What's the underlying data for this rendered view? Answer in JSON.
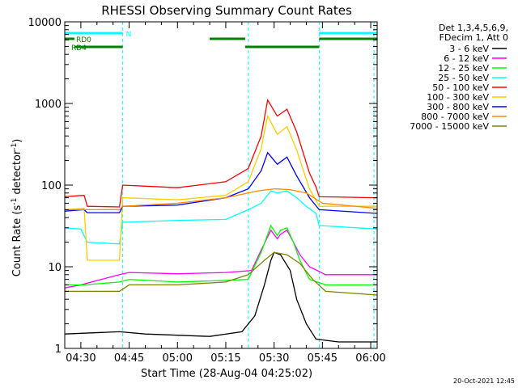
{
  "chart_data": {
    "type": "line",
    "title": "RHESSI Observing Summary Count Rates",
    "xlabel": "Start Time (28-Aug-04 04:25:02)",
    "ylabel_parts": [
      "Count Rate (s",
      "-1",
      " detector",
      "-1",
      ")"
    ],
    "yscale": "log",
    "ylim": [
      1,
      10000
    ],
    "xlim": [
      "04:25",
      "06:02"
    ],
    "x_ticks": [
      {
        "t": "04:30",
        "label": "04:30"
      },
      {
        "t": "04:45",
        "label": "04:45"
      },
      {
        "t": "05:00",
        "label": "05:00"
      },
      {
        "t": "05:15",
        "label": "05:15"
      },
      {
        "t": "05:30",
        "label": "05:30"
      },
      {
        "t": "05:45",
        "label": "05:45"
      },
      {
        "t": "06:00",
        "label": "06:00"
      }
    ],
    "y_ticks": [
      {
        "v": 1,
        "label": "1"
      },
      {
        "v": 10,
        "label": "10"
      },
      {
        "v": 100,
        "label": "100"
      },
      {
        "v": 1000,
        "label": "1000"
      },
      {
        "v": 10000,
        "label": "10000"
      }
    ],
    "legend_header": [
      "Det 1,3,4,5,6,9,",
      "FDecim 1, Att 0"
    ],
    "legend_placement": "right",
    "series": [
      {
        "name": "3 - 6 keV",
        "color": "#000000",
        "points": [
          [
            "04:25",
            1.5
          ],
          [
            "04:42",
            1.6
          ],
          [
            "04:50",
            1.5
          ],
          [
            "05:10",
            1.4
          ],
          [
            "05:20",
            1.6
          ],
          [
            "05:24",
            2.5
          ],
          [
            "05:27",
            6
          ],
          [
            "05:29",
            12
          ],
          [
            "05:30",
            15
          ],
          [
            "05:32",
            14
          ],
          [
            "05:35",
            9
          ],
          [
            "05:37",
            4
          ],
          [
            "05:40",
            2
          ],
          [
            "05:43",
            1.3
          ],
          [
            "05:50",
            1.2
          ],
          [
            "06:02",
            1.2
          ]
        ]
      },
      {
        "name": "6 - 12 keV",
        "color": "#ff00ff",
        "points": [
          [
            "04:25",
            5.5
          ],
          [
            "04:30",
            6
          ],
          [
            "04:42",
            8
          ],
          [
            "04:45",
            8.5
          ],
          [
            "05:00",
            8.2
          ],
          [
            "05:15",
            8.5
          ],
          [
            "05:23",
            9
          ],
          [
            "05:26",
            16
          ],
          [
            "05:29",
            28
          ],
          [
            "05:31",
            22
          ],
          [
            "05:32",
            25
          ],
          [
            "05:34",
            28
          ],
          [
            "05:36",
            20
          ],
          [
            "05:38",
            14
          ],
          [
            "05:41",
            10
          ],
          [
            "05:46",
            8
          ],
          [
            "06:02",
            8
          ]
        ]
      },
      {
        "name": "12 - 25 keV",
        "color": "#00ff00",
        "points": [
          [
            "04:25",
            6
          ],
          [
            "04:31",
            6
          ],
          [
            "04:42",
            6.5
          ],
          [
            "04:45",
            7
          ],
          [
            "05:00",
            6.5
          ],
          [
            "05:15",
            6.8
          ],
          [
            "05:22",
            7
          ],
          [
            "05:26",
            15
          ],
          [
            "05:29",
            32
          ],
          [
            "05:31",
            24
          ],
          [
            "05:32",
            28
          ],
          [
            "05:34",
            30
          ],
          [
            "05:36",
            20
          ],
          [
            "05:38",
            12
          ],
          [
            "05:41",
            7
          ],
          [
            "05:46",
            6
          ],
          [
            "06:02",
            6
          ]
        ]
      },
      {
        "name": "25 - 50 keV",
        "color": "#00ffff",
        "points": [
          [
            "04:25",
            30
          ],
          [
            "04:30",
            29
          ],
          [
            "04:32",
            20
          ],
          [
            "04:42",
            19
          ],
          [
            "04:43",
            35
          ],
          [
            "05:00",
            37
          ],
          [
            "05:15",
            38
          ],
          [
            "05:22",
            50
          ],
          [
            "05:26",
            60
          ],
          [
            "05:29",
            85
          ],
          [
            "05:31",
            80
          ],
          [
            "05:34",
            85
          ],
          [
            "05:37",
            70
          ],
          [
            "05:40",
            55
          ],
          [
            "05:43",
            45
          ],
          [
            "05:44",
            32
          ],
          [
            "06:02",
            29
          ]
        ]
      },
      {
        "name": "50 - 100 keV",
        "color": "#ff0000",
        "points": [
          [
            "04:25",
            72
          ],
          [
            "04:31",
            75
          ],
          [
            "04:32",
            55
          ],
          [
            "04:42",
            54
          ],
          [
            "04:43",
            100
          ],
          [
            "04:50",
            97
          ],
          [
            "05:00",
            93
          ],
          [
            "05:15",
            110
          ],
          [
            "05:22",
            160
          ],
          [
            "05:26",
            400
          ],
          [
            "05:28",
            1100
          ],
          [
            "05:31",
            700
          ],
          [
            "05:34",
            850
          ],
          [
            "05:37",
            450
          ],
          [
            "05:41",
            140
          ],
          [
            "05:43",
            95
          ],
          [
            "05:44",
            72
          ],
          [
            "06:02",
            70
          ]
        ]
      },
      {
        "name": "100 - 300 keV",
        "color": "#ffcc00",
        "points": [
          [
            "04:25",
            50
          ],
          [
            "04:31",
            52
          ],
          [
            "04:32",
            12
          ],
          [
            "04:42",
            12
          ],
          [
            "04:43",
            70
          ],
          [
            "05:00",
            66
          ],
          [
            "05:15",
            75
          ],
          [
            "05:22",
            110
          ],
          [
            "05:26",
            280
          ],
          [
            "05:28",
            700
          ],
          [
            "05:31",
            420
          ],
          [
            "05:34",
            520
          ],
          [
            "05:37",
            270
          ],
          [
            "05:41",
            90
          ],
          [
            "05:43",
            65
          ],
          [
            "05:44",
            55
          ],
          [
            "06:02",
            55
          ]
        ]
      },
      {
        "name": "300 - 800 keV",
        "color": "#0000ff",
        "points": [
          [
            "04:25",
            48
          ],
          [
            "04:31",
            50
          ],
          [
            "04:32",
            46
          ],
          [
            "04:42",
            46
          ],
          [
            "04:43",
            55
          ],
          [
            "05:00",
            57
          ],
          [
            "05:15",
            70
          ],
          [
            "05:22",
            90
          ],
          [
            "05:26",
            150
          ],
          [
            "05:28",
            250
          ],
          [
            "05:31",
            180
          ],
          [
            "05:34",
            220
          ],
          [
            "05:37",
            130
          ],
          [
            "05:41",
            70
          ],
          [
            "05:44",
            50
          ],
          [
            "06:02",
            45
          ]
        ]
      },
      {
        "name": "800 - 7000 keV",
        "color": "#ff8800",
        "points": [
          [
            "04:25",
            50
          ],
          [
            "04:42",
            50
          ],
          [
            "04:43",
            55
          ],
          [
            "05:00",
            60
          ],
          [
            "05:15",
            70
          ],
          [
            "05:25",
            85
          ],
          [
            "05:30",
            90
          ],
          [
            "05:35",
            88
          ],
          [
            "05:40",
            80
          ],
          [
            "05:45",
            60
          ],
          [
            "06:02",
            52
          ]
        ]
      },
      {
        "name": "7000 - 15000 keV",
        "color": "#808000",
        "points": [
          [
            "04:25",
            5
          ],
          [
            "04:35",
            5
          ],
          [
            "04:42",
            5
          ],
          [
            "04:45",
            6
          ],
          [
            "05:00",
            6
          ],
          [
            "05:15",
            6.5
          ],
          [
            "05:22",
            8
          ],
          [
            "05:27",
            12
          ],
          [
            "05:30",
            15
          ],
          [
            "05:34",
            14
          ],
          [
            "05:38",
            11
          ],
          [
            "05:42",
            7
          ],
          [
            "05:46",
            5
          ],
          [
            "06:02",
            4.5
          ]
        ]
      }
    ],
    "state_bars": [
      {
        "label": "N",
        "color": "#00ffff",
        "segments": [
          [
            "04:25",
            "04:43"
          ],
          [
            "05:44",
            "06:02"
          ]
        ]
      },
      {
        "label": "RD0",
        "color": "#008000",
        "segments": [
          [
            "04:25",
            "04:28"
          ],
          [
            "05:10",
            "05:21"
          ],
          [
            "05:44",
            "06:02"
          ]
        ]
      },
      {
        "label": "RD4",
        "color": "#008000",
        "segments": [
          [
            "04:28",
            "04:43"
          ],
          [
            "05:21",
            "05:44"
          ]
        ]
      }
    ],
    "vertical_markers": [
      {
        "t": "04:25",
        "color": "#00ffff"
      },
      {
        "t": "04:43",
        "color": "#00ffff"
      },
      {
        "t": "05:22",
        "color": "#00ffff"
      },
      {
        "t": "05:44",
        "color": "#00ffff"
      },
      {
        "t": "06:01",
        "color": "#00ffff"
      }
    ]
  },
  "footer_date": "20-Oct-2021 12:45"
}
